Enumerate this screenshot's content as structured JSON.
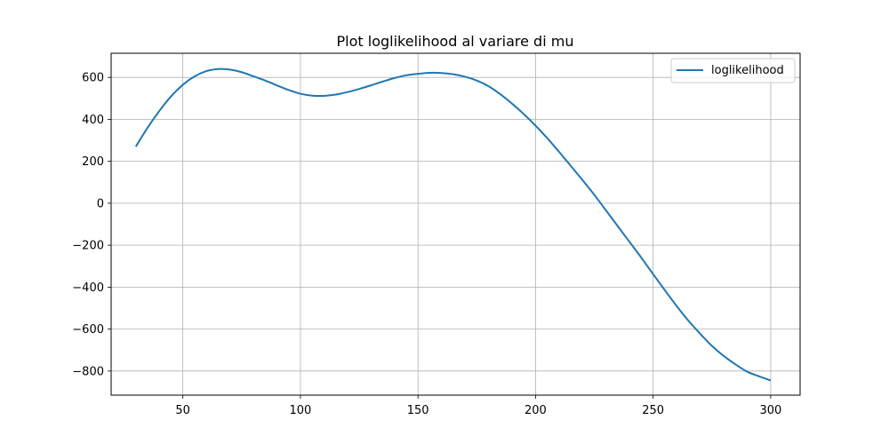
{
  "chart_data": {
    "type": "line",
    "title": "Plot loglikelihood al variare di mu",
    "xlabel": "",
    "ylabel": "",
    "xlim": [
      19.5,
      312.5
    ],
    "ylim": [
      -915,
      715
    ],
    "xticks": [
      50,
      100,
      150,
      200,
      250,
      300
    ],
    "yticks": [
      -800,
      -600,
      -400,
      -200,
      0,
      200,
      400,
      600
    ],
    "xtick_labels": [
      "50",
      "100",
      "150",
      "200",
      "250",
      "300"
    ],
    "ytick_labels": [
      "−800",
      "−600",
      "−400",
      "−200",
      "0",
      "200",
      "400",
      "600"
    ],
    "grid": true,
    "legend_position": "top-right",
    "series": [
      {
        "name": "loglikelihood",
        "color": "#1f77b4",
        "x": [
          30,
          35,
          40,
          45,
          50,
          55,
          60,
          65,
          70,
          75,
          80,
          85,
          90,
          95,
          100,
          105,
          110,
          115,
          120,
          125,
          130,
          135,
          140,
          145,
          150,
          155,
          160,
          165,
          170,
          175,
          180,
          185,
          190,
          195,
          200,
          205,
          210,
          215,
          220,
          225,
          230,
          235,
          240,
          245,
          250,
          255,
          260,
          265,
          270,
          275,
          280,
          285,
          290,
          295,
          300
        ],
        "y": [
          270,
          360,
          440,
          510,
          565,
          605,
          630,
          640,
          637,
          625,
          605,
          585,
          562,
          540,
          522,
          513,
          512,
          518,
          530,
          545,
          562,
          580,
          597,
          610,
          617,
          622,
          621,
          615,
          603,
          585,
          558,
          520,
          475,
          425,
          370,
          310,
          245,
          178,
          110,
          40,
          -35,
          -110,
          -185,
          -260,
          -338,
          -415,
          -490,
          -560,
          -622,
          -680,
          -728,
          -768,
          -803,
          -825,
          -845
        ]
      }
    ]
  }
}
